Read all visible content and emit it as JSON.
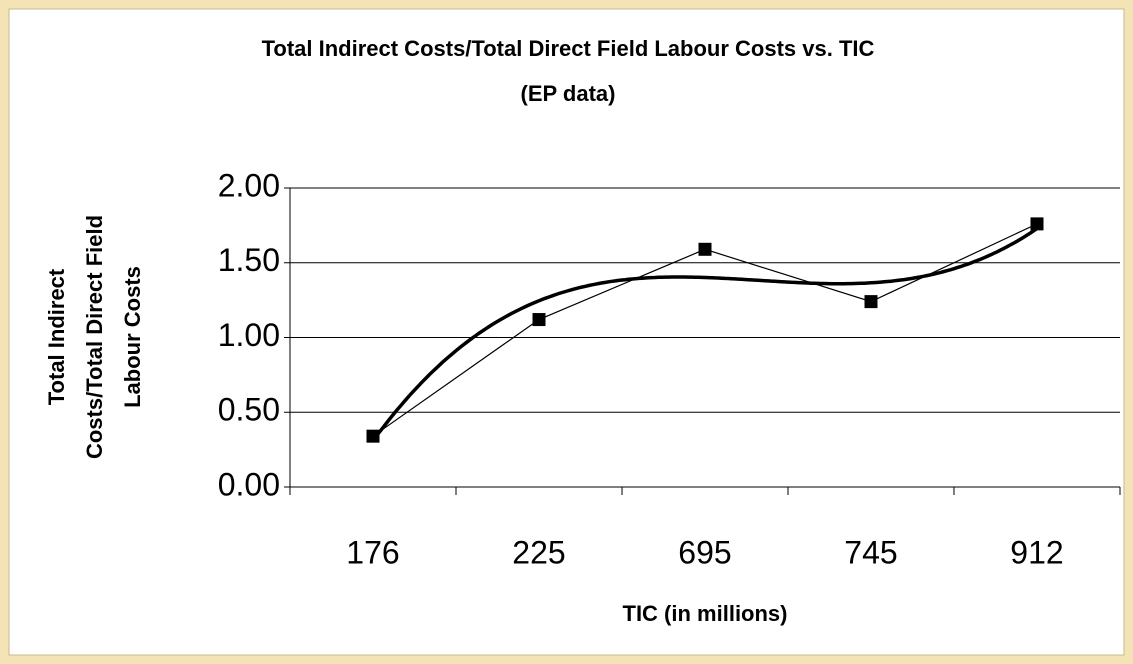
{
  "chart_data": {
    "type": "line",
    "title": [
      "Total Indirect Costs/Total Direct Field Labour Costs vs. TIC",
      "(EP data)"
    ],
    "y_label": [
      "Total Indirect",
      "Costs/Total Direct Field",
      "Labour Costs"
    ],
    "x_label": "TIC (in millions)",
    "categories": [
      "176",
      "225",
      "695",
      "745",
      "912"
    ],
    "series": [
      {
        "color": "#000000",
        "values": [
          0.34,
          1.12,
          1.59,
          1.24,
          1.76
        ]
      }
    ],
    "trendline": {
      "type": "polynomial",
      "order": 3
    },
    "ylim": [
      0,
      2
    ],
    "yticks": [
      {
        "value": 0,
        "label": "0.00"
      },
      {
        "value": 0.5,
        "label": "0.50"
      },
      {
        "value": 1,
        "label": "1.00"
      },
      {
        "value": 1.5,
        "label": "1.50"
      },
      {
        "value": 2,
        "label": "2.00"
      }
    ],
    "grid": true
  }
}
